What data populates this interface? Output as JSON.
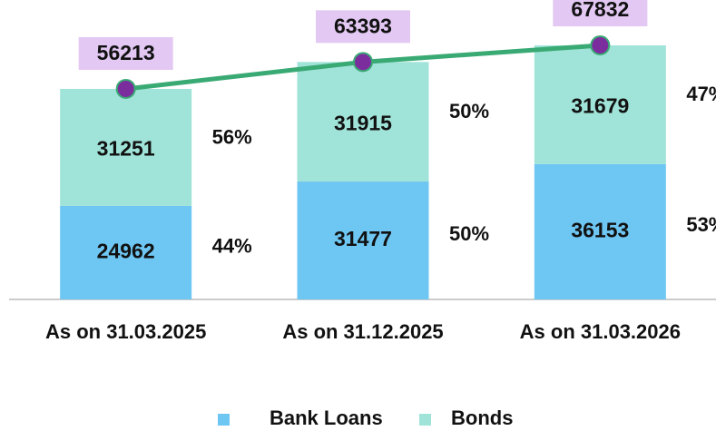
{
  "chart_data": {
    "type": "stacked_bar_line",
    "categories": [
      "As on 31.03.2025",
      "As on 31.12.2025",
      "As on 31.03.2026"
    ],
    "series": [
      {
        "name": "Bank Loans",
        "color": "#6ec6f2",
        "values": [
          24962,
          31477,
          36153
        ],
        "share_labels": [
          "44%",
          "50%",
          "53%"
        ]
      },
      {
        "name": "Bonds",
        "color": "#a0e3d8",
        "values": [
          31251,
          31915,
          31679
        ],
        "share_labels": [
          "56%",
          "50%",
          "47%"
        ]
      }
    ],
    "total": {
      "color": "#3aaa74",
      "marker_color": "#7b2d9e",
      "label_color": "#e2c8f2",
      "values": [
        56213,
        63393,
        67832
      ]
    },
    "legend": "bottom"
  }
}
